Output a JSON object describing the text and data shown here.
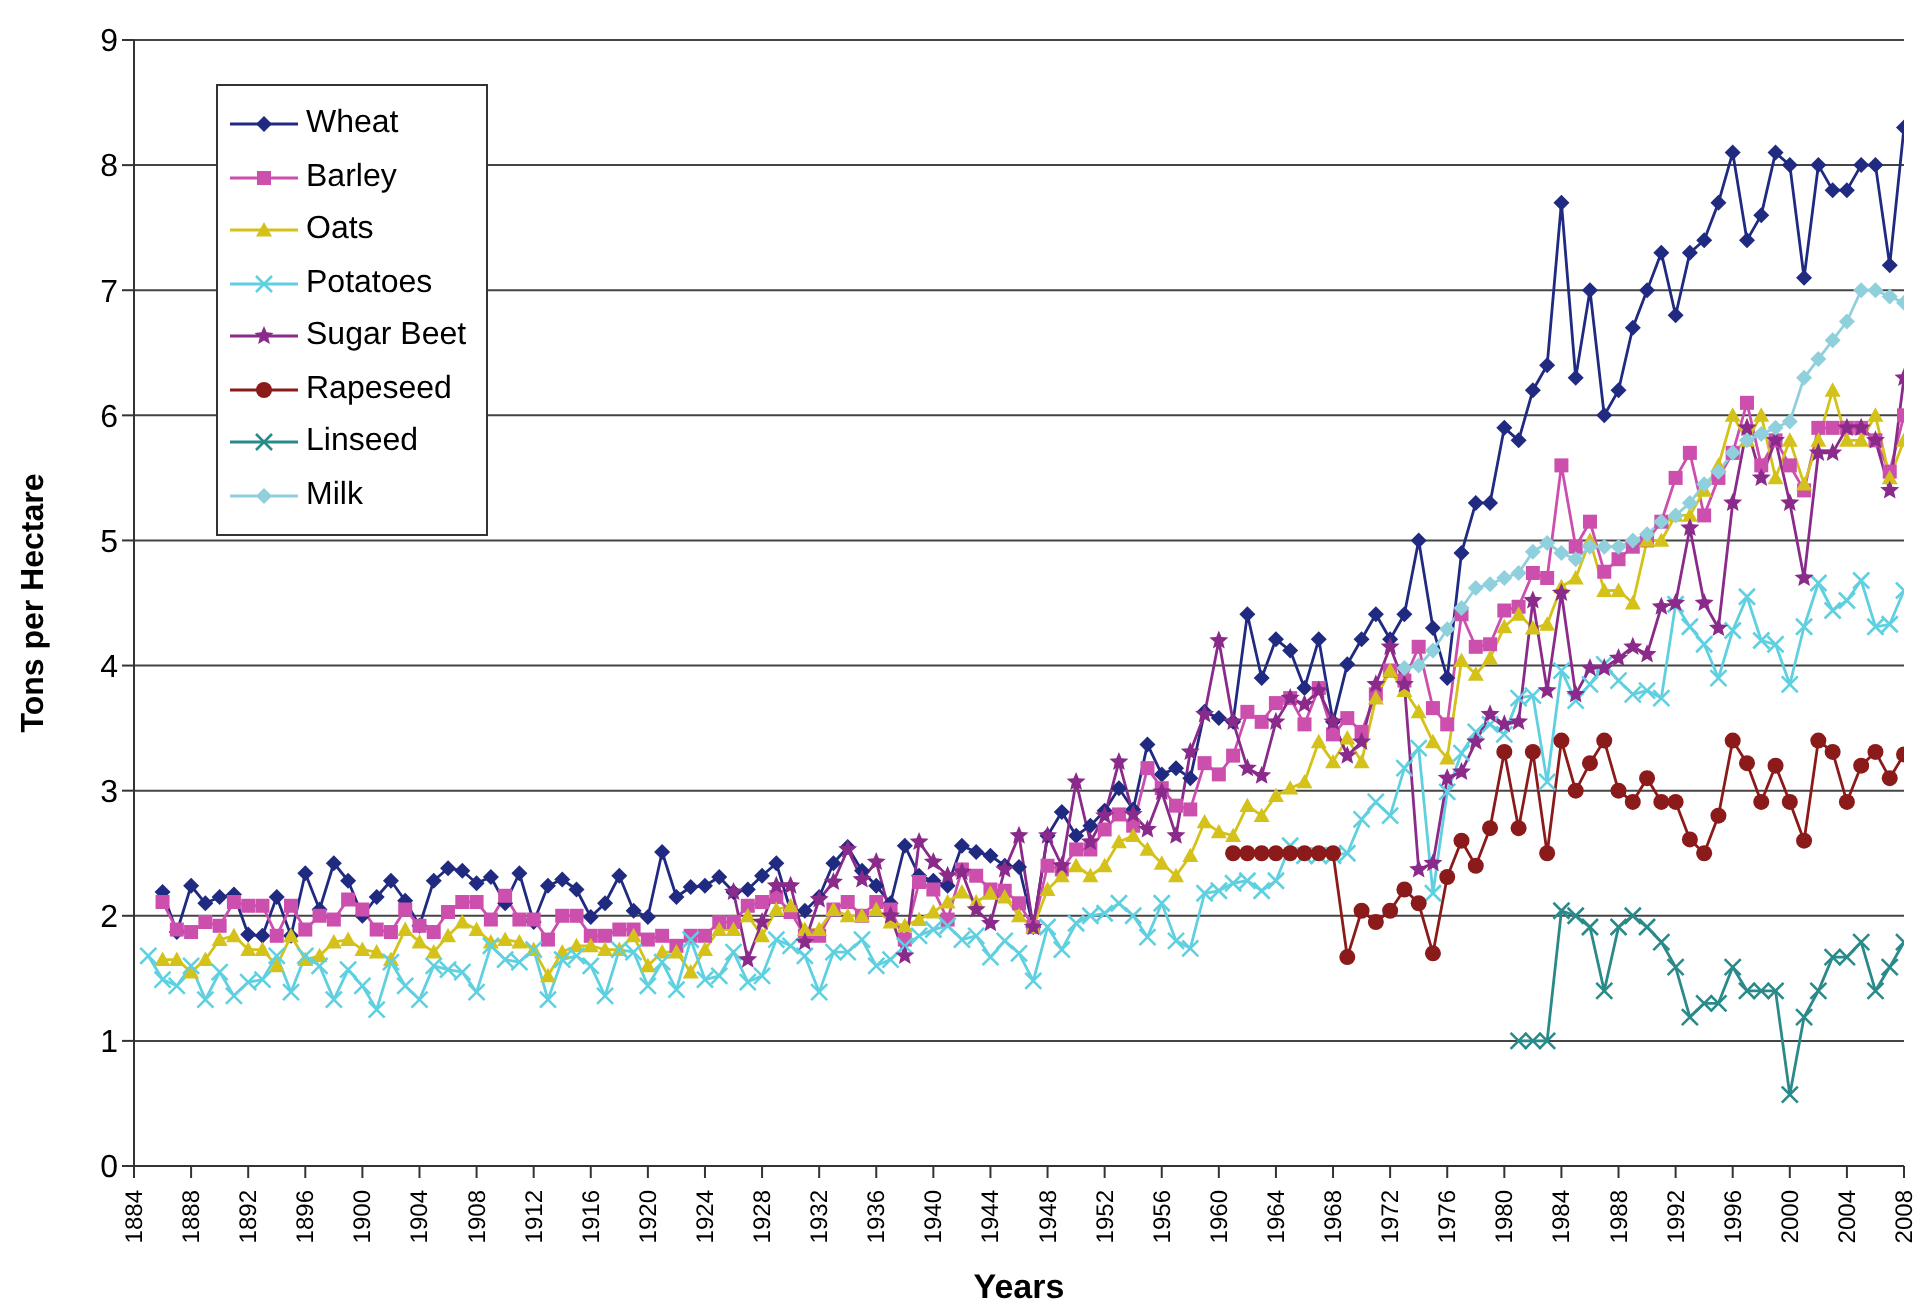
{
  "chart_data": {
    "type": "line",
    "xlabel": "Years",
    "ylabel": "Tons per Hectare",
    "xlim": [
      1884,
      2008
    ],
    "xticks": [
      1884,
      1888,
      1892,
      1896,
      1900,
      1904,
      1908,
      1912,
      1916,
      1920,
      1924,
      1928,
      1932,
      1936,
      1940,
      1944,
      1948,
      1952,
      1956,
      1960,
      1964,
      1968,
      1972,
      1976,
      1980,
      1984,
      1988,
      1992,
      1996,
      2000,
      2004,
      2008
    ],
    "ylim": [
      0,
      9
    ],
    "yticks": [
      0,
      1,
      2,
      3,
      4,
      5,
      6,
      7,
      8,
      9
    ],
    "grid": "y",
    "legend": "top left",
    "line_style": "solid",
    "x": [
      1885,
      1886,
      1887,
      1888,
      1889,
      1890,
      1891,
      1892,
      1893,
      1894,
      1895,
      1896,
      1897,
      1898,
      1899,
      1900,
      1901,
      1902,
      1903,
      1904,
      1905,
      1906,
      1907,
      1908,
      1909,
      1910,
      1911,
      1912,
      1913,
      1914,
      1915,
      1916,
      1917,
      1918,
      1919,
      1920,
      1921,
      1922,
      1923,
      1924,
      1925,
      1926,
      1927,
      1928,
      1929,
      1930,
      1931,
      1932,
      1933,
      1934,
      1935,
      1936,
      1937,
      1938,
      1939,
      1940,
      1941,
      1942,
      1943,
      1944,
      1945,
      1946,
      1947,
      1948,
      1949,
      1950,
      1951,
      1952,
      1953,
      1954,
      1955,
      1956,
      1957,
      1958,
      1959,
      1960,
      1961,
      1962,
      1963,
      1964,
      1965,
      1966,
      1967,
      1968,
      1969,
      1970,
      1971,
      1972,
      1973,
      1974,
      1975,
      1976,
      1977,
      1978,
      1979,
      1980,
      1981,
      1982,
      1983,
      1984,
      1985,
      1986,
      1987,
      1988,
      1989,
      1990,
      1991,
      1992,
      1993,
      1994,
      1995,
      1996,
      1997,
      1998,
      1999,
      2000,
      2001,
      2002,
      2003,
      2004,
      2005,
      2006,
      2007,
      2008
    ],
    "series": [
      {
        "name": "Wheat",
        "color": "#1f2a80",
        "marker": "diamond",
        "values": [
          null,
          2.19,
          1.87,
          2.24,
          2.1,
          2.15,
          2.17,
          1.85,
          1.84,
          2.15,
          1.84,
          2.34,
          2.05,
          2.42,
          2.28,
          2.0,
          2.15,
          2.28,
          2.12,
          1.92,
          2.28,
          2.38,
          2.36,
          2.26,
          2.31,
          2.1,
          2.34,
          1.95,
          2.24,
          2.29,
          2.21,
          1.99,
          2.1,
          2.32,
          2.04,
          1.99,
          2.51,
          2.15,
          2.23,
          2.24,
          2.31,
          2.19,
          2.21,
          2.32,
          2.42,
          2.04,
          2.04,
          2.15,
          2.42,
          2.55,
          2.36,
          2.24,
          2.1,
          2.56,
          2.32,
          2.28,
          2.24,
          2.56,
          2.51,
          2.48,
          2.4,
          2.39,
          1.91,
          2.64,
          2.83,
          2.64,
          2.72,
          2.84,
          3.02,
          2.85,
          3.37,
          3.13,
          3.18,
          3.1,
          3.63,
          3.58,
          3.55,
          4.41,
          3.9,
          4.21,
          4.12,
          3.82,
          4.21,
          3.55,
          4.01,
          4.21,
          4.41,
          4.21,
          4.41,
          5.0,
          4.3,
          3.9,
          4.9,
          5.3,
          5.3,
          5.9,
          5.8,
          6.2,
          6.4,
          7.7,
          6.3,
          7.0,
          6.0,
          6.2,
          6.7,
          7.0,
          7.3,
          6.8,
          7.3,
          7.4,
          7.7,
          8.1,
          7.4,
          7.6,
          8.1,
          8.0,
          7.1,
          8.0,
          7.8,
          7.8,
          8.0,
          8.0,
          7.2,
          8.3
        ]
      },
      {
        "name": "Barley",
        "color": "#cc4fae",
        "marker": "square",
        "values": [
          null,
          2.11,
          1.89,
          1.87,
          1.95,
          1.92,
          2.11,
          2.08,
          2.08,
          1.84,
          2.08,
          1.89,
          2.0,
          1.97,
          2.13,
          2.05,
          1.89,
          1.87,
          2.05,
          1.92,
          1.87,
          2.03,
          2.11,
          2.11,
          1.97,
          2.16,
          1.97,
          1.97,
          1.81,
          2.0,
          2.0,
          1.84,
          1.84,
          1.89,
          1.89,
          1.81,
          1.84,
          1.76,
          1.84,
          1.84,
          1.95,
          1.95,
          2.08,
          2.11,
          2.15,
          2.03,
          1.84,
          1.84,
          2.05,
          2.11,
          2.0,
          2.11,
          2.05,
          1.81,
          2.27,
          2.21,
          1.97,
          2.37,
          2.32,
          2.21,
          2.2,
          2.1,
          1.91,
          2.4,
          2.37,
          2.53,
          2.53,
          2.69,
          2.81,
          2.72,
          3.18,
          3.02,
          2.88,
          2.85,
          3.22,
          3.13,
          3.28,
          3.63,
          3.55,
          3.7,
          3.74,
          3.53,
          3.82,
          3.45,
          3.58,
          3.47,
          3.77,
          3.96,
          3.88,
          4.15,
          3.66,
          3.53,
          4.41,
          4.15,
          4.17,
          4.44,
          4.47,
          4.74,
          4.7,
          5.6,
          4.95,
          5.15,
          4.75,
          4.85,
          4.95,
          5.0,
          5.15,
          5.5,
          5.7,
          5.2,
          5.5,
          5.7,
          6.1,
          5.6,
          5.8,
          5.6,
          5.4,
          5.9,
          5.9,
          5.9,
          5.9,
          5.8,
          5.55,
          6.0
        ]
      },
      {
        "name": "Oats",
        "color": "#d4c21a",
        "marker": "triangle",
        "values": [
          null,
          1.65,
          1.65,
          1.55,
          1.65,
          1.81,
          1.84,
          1.73,
          1.73,
          1.6,
          1.84,
          1.65,
          1.68,
          1.79,
          1.81,
          1.73,
          1.71,
          1.65,
          1.89,
          1.79,
          1.71,
          1.84,
          1.95,
          1.89,
          1.79,
          1.81,
          1.79,
          1.73,
          1.52,
          1.71,
          1.76,
          1.76,
          1.73,
          1.73,
          1.84,
          1.6,
          1.71,
          1.71,
          1.55,
          1.73,
          1.89,
          1.89,
          2.0,
          1.84,
          2.05,
          2.08,
          1.89,
          1.89,
          2.05,
          2.0,
          2.0,
          2.05,
          1.95,
          1.92,
          1.97,
          2.03,
          2.11,
          2.19,
          2.11,
          2.18,
          2.15,
          2.0,
          1.91,
          2.21,
          2.32,
          2.4,
          2.32,
          2.4,
          2.59,
          2.64,
          2.53,
          2.42,
          2.32,
          2.48,
          2.75,
          2.67,
          2.64,
          2.88,
          2.8,
          2.96,
          3.02,
          3.07,
          3.39,
          3.23,
          3.42,
          3.23,
          3.74,
          3.96,
          3.8,
          3.63,
          3.39,
          3.26,
          4.04,
          3.93,
          4.06,
          4.31,
          4.41,
          4.3,
          4.33,
          4.63,
          4.7,
          5.0,
          4.6,
          4.6,
          4.5,
          5.0,
          5.0,
          5.2,
          5.2,
          5.4,
          5.6,
          6.0,
          5.8,
          6.0,
          5.5,
          5.8,
          5.45,
          5.8,
          6.2,
          5.8,
          5.8,
          6.0,
          5.5,
          5.8
        ]
      },
      {
        "name": "Potatoes",
        "color": "#5fd0e0",
        "marker": "cross",
        "values": [
          1.68,
          1.49,
          1.44,
          1.6,
          1.33,
          1.55,
          1.36,
          1.47,
          1.49,
          1.68,
          1.39,
          1.68,
          1.6,
          1.33,
          1.57,
          1.44,
          1.25,
          1.63,
          1.44,
          1.33,
          1.6,
          1.57,
          1.55,
          1.39,
          1.76,
          1.65,
          1.63,
          1.73,
          1.33,
          1.65,
          1.68,
          1.6,
          1.36,
          1.73,
          1.71,
          1.44,
          1.63,
          1.41,
          1.81,
          1.49,
          1.52,
          1.71,
          1.47,
          1.52,
          1.81,
          1.76,
          1.68,
          1.39,
          1.71,
          1.71,
          1.81,
          1.6,
          1.65,
          1.76,
          1.84,
          1.89,
          1.92,
          1.81,
          1.84,
          1.67,
          1.8,
          1.7,
          1.48,
          1.91,
          1.73,
          1.94,
          2.0,
          2.02,
          2.1,
          2.0,
          1.83,
          2.1,
          1.8,
          1.74,
          2.18,
          2.2,
          2.26,
          2.28,
          2.2,
          2.28,
          2.56,
          2.48,
          2.48,
          2.48,
          2.5,
          2.77,
          2.91,
          2.8,
          3.18,
          3.34,
          2.18,
          2.99,
          3.3,
          3.47,
          3.53,
          3.45,
          3.74,
          3.76,
          3.07,
          3.96,
          3.72,
          3.85,
          4.01,
          3.88,
          3.77,
          3.8,
          3.74,
          4.49,
          4.31,
          4.17,
          3.9,
          4.28,
          4.55,
          4.2,
          4.17,
          3.85,
          4.31,
          4.66,
          4.44,
          4.52,
          4.68,
          4.31,
          4.33,
          4.6
        ]
      },
      {
        "name": "Sugar Beet",
        "color": "#8a2a8a",
        "marker": "star",
        "values": [
          null,
          null,
          null,
          null,
          null,
          null,
          null,
          null,
          null,
          null,
          null,
          null,
          null,
          null,
          null,
          null,
          null,
          null,
          null,
          null,
          null,
          null,
          null,
          null,
          null,
          null,
          null,
          null,
          null,
          null,
          null,
          null,
          null,
          null,
          null,
          null,
          null,
          null,
          null,
          null,
          null,
          2.19,
          1.65,
          1.95,
          2.24,
          2.24,
          1.79,
          2.13,
          2.27,
          2.53,
          2.29,
          2.43,
          2.0,
          1.68,
          2.59,
          2.43,
          2.32,
          2.35,
          2.05,
          1.94,
          2.37,
          2.64,
          1.91,
          2.64,
          2.4,
          3.07,
          2.59,
          2.8,
          3.23,
          2.81,
          2.69,
          2.99,
          2.64,
          3.31,
          3.61,
          4.2,
          3.55,
          3.18,
          3.12,
          3.55,
          3.74,
          3.69,
          3.8,
          3.55,
          3.28,
          3.39,
          3.85,
          4.15,
          3.85,
          2.37,
          2.42,
          3.1,
          3.15,
          3.39,
          3.61,
          3.53,
          3.55,
          4.52,
          3.8,
          4.58,
          3.77,
          3.98,
          3.98,
          4.06,
          4.15,
          4.09,
          4.47,
          4.5,
          5.1,
          4.5,
          4.3,
          5.3,
          5.9,
          5.5,
          5.8,
          5.3,
          4.7,
          5.7,
          5.7,
          5.9,
          5.9,
          5.8,
          5.4,
          6.3
        ]
      },
      {
        "name": "Rapeseed",
        "color": "#8b1a1a",
        "marker": "circle",
        "values": [
          null,
          null,
          null,
          null,
          null,
          null,
          null,
          null,
          null,
          null,
          null,
          null,
          null,
          null,
          null,
          null,
          null,
          null,
          null,
          null,
          null,
          null,
          null,
          null,
          null,
          null,
          null,
          null,
          null,
          null,
          null,
          null,
          null,
          null,
          null,
          null,
          null,
          null,
          null,
          null,
          null,
          null,
          null,
          null,
          null,
          null,
          null,
          null,
          null,
          null,
          null,
          null,
          null,
          null,
          null,
          null,
          null,
          null,
          null,
          null,
          null,
          null,
          null,
          null,
          null,
          null,
          null,
          null,
          null,
          null,
          null,
          null,
          null,
          null,
          null,
          null,
          2.5,
          2.5,
          2.5,
          2.5,
          2.5,
          2.5,
          2.5,
          2.5,
          1.67,
          2.04,
          1.95,
          2.04,
          2.21,
          2.1,
          1.7,
          2.31,
          2.6,
          2.4,
          2.7,
          3.31,
          2.7,
          3.31,
          2.5,
          3.4,
          3.0,
          3.22,
          3.4,
          3.0,
          2.91,
          3.1,
          2.91,
          2.91,
          2.61,
          2.5,
          2.8,
          3.4,
          3.22,
          2.91,
          3.2,
          2.91,
          2.6,
          3.4,
          3.31,
          2.91,
          3.2,
          3.31,
          3.1,
          3.29
        ]
      },
      {
        "name": "Linseed",
        "color": "#2a8a8a",
        "marker": "cross",
        "values": [
          null,
          null,
          null,
          null,
          null,
          null,
          null,
          null,
          null,
          null,
          null,
          null,
          null,
          null,
          null,
          null,
          null,
          null,
          null,
          null,
          null,
          null,
          null,
          null,
          null,
          null,
          null,
          null,
          null,
          null,
          null,
          null,
          null,
          null,
          null,
          null,
          null,
          null,
          null,
          null,
          null,
          null,
          null,
          null,
          null,
          null,
          null,
          null,
          null,
          null,
          null,
          null,
          null,
          null,
          null,
          null,
          null,
          null,
          null,
          null,
          null,
          null,
          null,
          null,
          null,
          null,
          null,
          null,
          null,
          null,
          null,
          null,
          null,
          null,
          null,
          null,
          null,
          null,
          null,
          null,
          null,
          null,
          null,
          null,
          null,
          null,
          null,
          null,
          null,
          null,
          null,
          null,
          null,
          null,
          null,
          null,
          1.0,
          1.0,
          1.0,
          2.04,
          2.0,
          1.91,
          1.4,
          1.91,
          2.0,
          1.91,
          1.79,
          1.59,
          1.19,
          1.3,
          1.3,
          1.59,
          1.4,
          1.4,
          1.4,
          0.57,
          1.19,
          1.4,
          1.67,
          1.67,
          1.79,
          1.4,
          1.59,
          1.79
        ]
      },
      {
        "name": "Milk",
        "color": "#8fd0dc",
        "marker": "diamond",
        "values": [
          null,
          null,
          null,
          null,
          null,
          null,
          null,
          null,
          null,
          null,
          null,
          null,
          null,
          null,
          null,
          null,
          null,
          null,
          null,
          null,
          null,
          null,
          null,
          null,
          null,
          null,
          null,
          null,
          null,
          null,
          null,
          null,
          null,
          null,
          null,
          null,
          null,
          null,
          null,
          null,
          null,
          null,
          null,
          null,
          null,
          null,
          null,
          null,
          null,
          null,
          null,
          null,
          null,
          null,
          null,
          null,
          null,
          null,
          null,
          null,
          null,
          null,
          null,
          null,
          null,
          null,
          null,
          null,
          null,
          null,
          null,
          null,
          null,
          null,
          null,
          null,
          null,
          null,
          null,
          null,
          null,
          null,
          null,
          null,
          null,
          null,
          null,
          null,
          3.98,
          4.0,
          4.12,
          4.29,
          4.46,
          4.62,
          4.65,
          4.7,
          4.74,
          4.91,
          4.98,
          4.9,
          4.85,
          4.95,
          4.95,
          4.95,
          5.0,
          5.05,
          5.15,
          5.2,
          5.3,
          5.45,
          5.55,
          5.7,
          5.8,
          5.85,
          5.9,
          5.95,
          6.3,
          6.45,
          6.6,
          6.75,
          7.0,
          7.0,
          6.95,
          6.9
        ]
      }
    ]
  }
}
